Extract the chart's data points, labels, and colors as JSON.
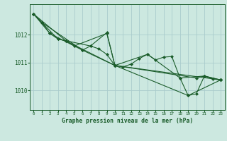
{
  "title": "Graphe pression niveau de la mer (hPa)",
  "background_color": "#cce8e0",
  "grid_color": "#aacccc",
  "line_color": "#1a5c2a",
  "marker_color": "#1a5c2a",
  "xlim": [
    -0.5,
    23.5
  ],
  "ylim": [
    1009.3,
    1013.1
  ],
  "yticks": [
    1010,
    1011,
    1012
  ],
  "xticks": [
    0,
    1,
    2,
    3,
    4,
    5,
    6,
    7,
    8,
    9,
    10,
    11,
    12,
    13,
    14,
    15,
    16,
    17,
    18,
    19,
    20,
    21,
    22,
    23
  ],
  "series": [
    [
      0,
      1012.75
    ],
    [
      1,
      1012.45
    ],
    [
      2,
      1012.05
    ],
    [
      3,
      1011.85
    ],
    [
      4,
      1011.78
    ],
    [
      5,
      1011.6
    ],
    [
      6,
      1011.45
    ],
    [
      7,
      1011.6
    ],
    [
      8,
      1011.5
    ],
    [
      9,
      1011.3
    ],
    [
      10,
      1010.9
    ],
    [
      11,
      1010.85
    ],
    [
      12,
      1010.95
    ],
    [
      13,
      1011.15
    ],
    [
      14,
      1011.3
    ],
    [
      15,
      1011.1
    ],
    [
      16,
      1011.2
    ],
    [
      17,
      1011.22
    ],
    [
      18,
      1010.45
    ],
    [
      19,
      1009.82
    ],
    [
      20,
      1009.88
    ],
    [
      21,
      1010.52
    ],
    [
      22,
      1010.42
    ],
    [
      23,
      1010.38
    ]
  ],
  "extra_series": [
    [
      [
        0,
        1012.75
      ],
      [
        4,
        1011.78
      ],
      [
        10,
        1010.9
      ],
      [
        23,
        1010.38
      ]
    ],
    [
      [
        0,
        1012.75
      ],
      [
        2,
        1012.05
      ],
      [
        5,
        1011.6
      ],
      [
        9,
        1012.05
      ],
      [
        10,
        1010.9
      ],
      [
        19,
        1009.82
      ],
      [
        23,
        1010.38
      ]
    ],
    [
      [
        0,
        1012.75
      ],
      [
        3,
        1011.85
      ],
      [
        7,
        1011.6
      ],
      [
        9,
        1012.08
      ],
      [
        10,
        1010.9
      ],
      [
        20,
        1010.45
      ],
      [
        21,
        1010.52
      ],
      [
        23,
        1010.38
      ]
    ],
    [
      [
        1,
        1012.45
      ],
      [
        6,
        1011.45
      ],
      [
        10,
        1010.9
      ],
      [
        14,
        1011.3
      ],
      [
        18,
        1010.45
      ],
      [
        21,
        1010.52
      ],
      [
        23,
        1010.38
      ]
    ]
  ]
}
